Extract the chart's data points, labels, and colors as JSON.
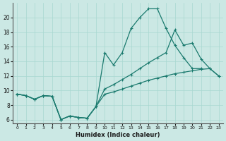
{
  "xlabel": "Humidex (Indice chaleur)",
  "bg_color": "#cbe8e4",
  "grid_color": "#a8d8d0",
  "line_color": "#1a7a6e",
  "xlim": [
    -0.5,
    23.5
  ],
  "ylim": [
    5.5,
    22.0
  ],
  "xticks": [
    0,
    1,
    2,
    3,
    4,
    5,
    6,
    7,
    8,
    9,
    10,
    11,
    12,
    13,
    14,
    15,
    16,
    17,
    18,
    19,
    20,
    21,
    22,
    23
  ],
  "yticks": [
    6,
    8,
    10,
    12,
    14,
    16,
    18,
    20
  ],
  "line1_x": [
    0,
    1,
    2,
    3,
    4,
    5,
    6,
    7,
    8,
    9,
    10,
    11,
    12,
    13,
    14,
    15,
    16,
    17,
    18,
    19,
    20,
    21
  ],
  "line1_y": [
    9.5,
    9.3,
    8.8,
    9.3,
    9.2,
    6.0,
    6.5,
    6.3,
    6.2,
    7.8,
    15.2,
    13.5,
    15.2,
    18.5,
    20.0,
    21.2,
    21.2,
    18.5,
    16.2,
    14.5,
    13.0,
    13.0
  ],
  "line2_x": [
    0,
    1,
    2,
    3,
    4,
    5,
    6,
    7,
    8,
    9,
    10,
    11,
    12,
    13,
    14,
    15,
    16,
    17,
    18,
    19,
    20,
    21,
    22,
    23
  ],
  "line2_y": [
    9.5,
    9.3,
    8.8,
    9.3,
    9.2,
    6.0,
    6.5,
    6.3,
    6.2,
    7.8,
    9.5,
    9.8,
    10.2,
    10.6,
    11.0,
    11.4,
    11.7,
    12.0,
    12.3,
    12.5,
    12.7,
    12.9,
    13.0,
    12.0
  ],
  "line3_x": [
    0,
    1,
    2,
    3,
    4,
    5,
    6,
    7,
    8,
    9,
    10,
    11,
    12,
    13,
    14,
    15,
    16,
    17,
    18,
    19,
    20,
    21,
    22,
    23
  ],
  "line3_y": [
    9.5,
    9.3,
    8.8,
    9.3,
    9.2,
    6.0,
    6.5,
    6.3,
    6.2,
    7.8,
    10.2,
    10.8,
    11.5,
    12.2,
    13.0,
    13.8,
    14.5,
    15.2,
    18.3,
    16.2,
    16.5,
    14.3,
    13.0,
    12.0
  ]
}
